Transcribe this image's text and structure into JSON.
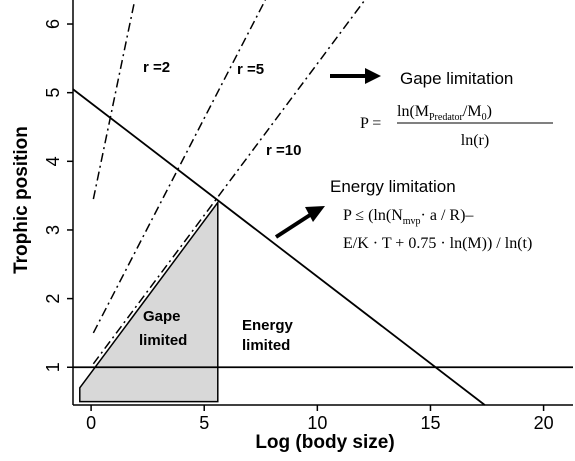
{
  "chart_data": {
    "type": "line",
    "xlabel": "Log (body size)",
    "ylabel": "Trophic position",
    "xlim": [
      -0.8,
      21.3
    ],
    "ylim": [
      0.45,
      6.35
    ],
    "x_ticks": [
      0,
      5,
      10,
      15,
      20
    ],
    "y_ticks": [
      1,
      2,
      3,
      4,
      5,
      6
    ],
    "series": [
      {
        "name": "r =2",
        "style": "dash-dot",
        "x": [
          0.1,
          1.9
        ],
        "y": [
          3.45,
          6.3
        ]
      },
      {
        "name": "r =5",
        "style": "dash-dot",
        "x": [
          0.1,
          7.7
        ],
        "y": [
          1.5,
          6.35
        ]
      },
      {
        "name": "r =10",
        "style": "dash-dot",
        "x": [
          0.1,
          12.1
        ],
        "y": [
          1.05,
          6.35
        ]
      },
      {
        "name": "Energy limitation",
        "style": "solid",
        "x": [
          -0.8,
          17.4
        ],
        "y": [
          5.05,
          0.45
        ]
      },
      {
        "name": "",
        "style": "solid",
        "x": [
          -0.8,
          21.3
        ],
        "y": [
          1.0,
          1.0
        ]
      }
    ],
    "shaded_region": {
      "label": "Gape limited",
      "x": [
        -0.5,
        5.6,
        5.6,
        -0.5,
        -0.5
      ],
      "y": [
        0.7,
        3.4,
        0.5,
        0.5,
        0.7
      ],
      "color": "#d8d8d8"
    },
    "annotations": {
      "r2": "r =2",
      "r5": "r =5",
      "r10": "r =10",
      "gape_title": "Gape limitation",
      "energy_title": "Energy limitation",
      "gape_limited_1": "Gape",
      "gape_limited_2": "limited",
      "energy_limited_1": "Energy",
      "energy_limited_2": "limited",
      "gape_formula_lhs": "P =",
      "gape_formula_num": "ln(M",
      "gape_formula_sub": "Predator",
      "gape_formula_num_tail": "/M",
      "gape_formula_sub0": "0",
      "gape_formula_close": ")",
      "gape_formula_den": "ln(r)",
      "energy_formula_l1a": "P ≤ (ln(N",
      "energy_formula_sub": "mvp",
      "energy_formula_l1b": "· a / R)–",
      "energy_formula_l2": "E/K · T + 0.75 · ln(M)) / ln(t)"
    }
  }
}
